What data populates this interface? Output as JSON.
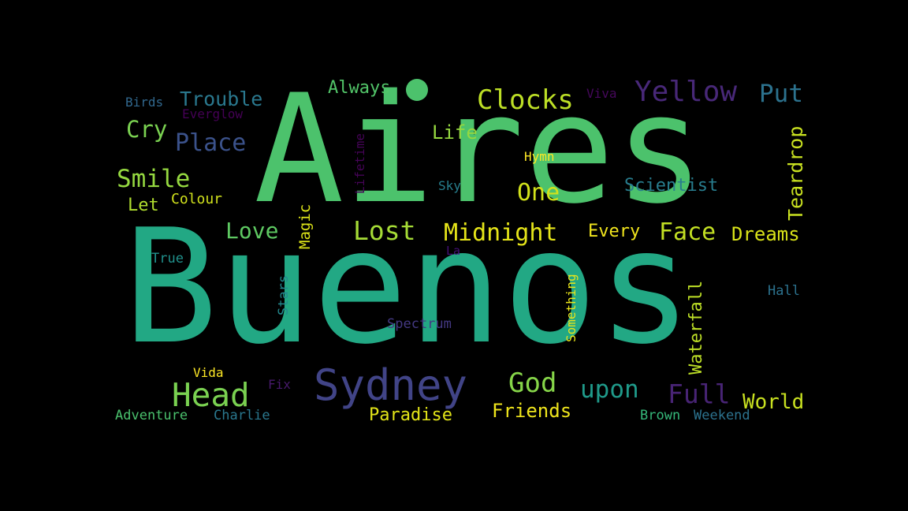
{
  "cloud": {
    "background": "#000000",
    "words": [
      {
        "text": "Buenos",
        "color": "#22a884"
      },
      {
        "text": "Aires",
        "color": "#4cc26c"
      },
      {
        "text": "Sydney",
        "color": "#414487"
      },
      {
        "text": "Head",
        "color": "#7ad151"
      },
      {
        "text": "Yellow",
        "color": "#482878"
      },
      {
        "text": "Clocks",
        "color": "#bddf26"
      },
      {
        "text": "Lost",
        "color": "#a5db36"
      },
      {
        "text": "Midnight",
        "color": "#e5e419"
      },
      {
        "text": "Face",
        "color": "#c2df23"
      },
      {
        "text": "One",
        "color": "#d2e21b"
      },
      {
        "text": "God",
        "color": "#86d549"
      },
      {
        "text": "upon",
        "color": "#1f9a8a"
      },
      {
        "text": "Full",
        "color": "#482475"
      },
      {
        "text": "Smile",
        "color": "#95d840"
      },
      {
        "text": "Place",
        "color": "#3b528b"
      },
      {
        "text": "Love",
        "color": "#5ec962"
      },
      {
        "text": "Cry",
        "color": "#7ad151"
      },
      {
        "text": "Put",
        "color": "#2c728e"
      },
      {
        "text": "Trouble",
        "color": "#2a788e"
      },
      {
        "text": "Dreams",
        "color": "#d8e219"
      },
      {
        "text": "World",
        "color": "#c8e020"
      },
      {
        "text": "Every",
        "color": "#f1e51d"
      },
      {
        "text": "Friends",
        "color": "#efe51c"
      },
      {
        "text": "Paradise",
        "color": "#e2e418"
      },
      {
        "text": "Life",
        "color": "#95d840"
      },
      {
        "text": "Scientist",
        "color": "#287d8e"
      },
      {
        "text": "Always",
        "color": "#52c569"
      },
      {
        "text": "Let",
        "color": "#b0dd2f"
      },
      {
        "text": "Teardrop",
        "color": "#c8e020"
      },
      {
        "text": "Waterfall",
        "color": "#bddf26"
      },
      {
        "text": "Magic",
        "color": "#dde318"
      },
      {
        "text": "Colour",
        "color": "#d0e11c"
      },
      {
        "text": "Adventure",
        "color": "#4ac16d"
      },
      {
        "text": "Charlie",
        "color": "#2a788e"
      },
      {
        "text": "Brown",
        "color": "#35b779"
      },
      {
        "text": "Weekend",
        "color": "#2c728e"
      },
      {
        "text": "Spectrum",
        "color": "#443983"
      },
      {
        "text": "Birds",
        "color": "#31688e"
      },
      {
        "text": "Everglow",
        "color": "#440154"
      },
      {
        "text": "Viva",
        "color": "#46085c"
      },
      {
        "text": "Hymn",
        "color": "#fde725"
      },
      {
        "text": "Sky",
        "color": "#277f8e"
      },
      {
        "text": "Lifetime",
        "color": "#450457"
      },
      {
        "text": "True",
        "color": "#21918c"
      },
      {
        "text": "Hall",
        "color": "#2c728e"
      },
      {
        "text": "Vida",
        "color": "#fde725"
      },
      {
        "text": "Fix",
        "color": "#481a6c"
      },
      {
        "text": "La",
        "color": "#440f76"
      },
      {
        "text": "Stars",
        "color": "#23898e"
      },
      {
        "text": "Something",
        "color": "#eae51a"
      }
    ]
  }
}
